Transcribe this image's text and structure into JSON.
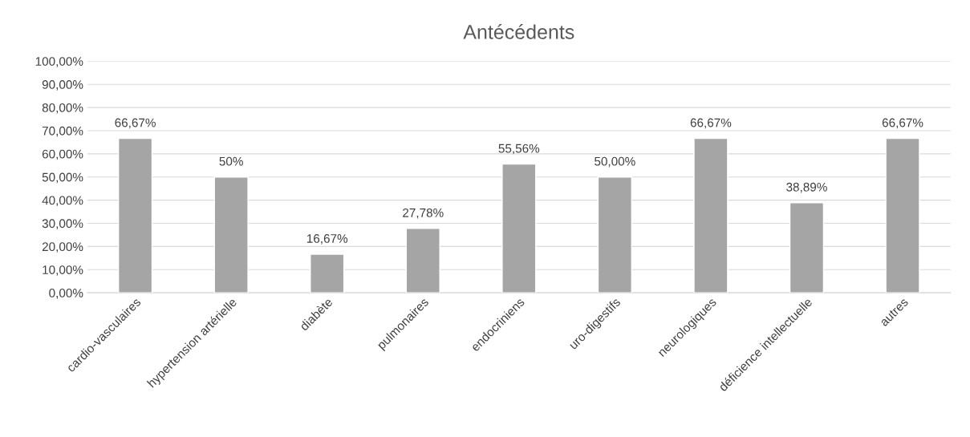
{
  "chart_data": {
    "type": "bar",
    "title": "Antécédents",
    "categories": [
      "cardio-vasculaires",
      "hypertension artérielle",
      "diabète",
      "pulmonaires",
      "endocriniens",
      "uro-digestifs",
      "neurologiques",
      "déficience intellectuelle",
      "autres"
    ],
    "values": [
      66.67,
      50,
      16.67,
      27.78,
      55.56,
      50.0,
      66.67,
      38.89,
      66.67
    ],
    "value_labels": [
      "66,67%",
      "50%",
      "16,67%",
      "27,78%",
      "55,56%",
      "50,00%",
      "66,67%",
      "38,89%",
      "66,67%"
    ],
    "color": "#a5a5a5",
    "ylim": [
      0,
      100
    ],
    "yticks": [
      {
        "value": 0,
        "label": "0,00%"
      },
      {
        "value": 10,
        "label": "10,00%"
      },
      {
        "value": 20,
        "label": "20,00%"
      },
      {
        "value": 30,
        "label": "30,00%"
      },
      {
        "value": 40,
        "label": "40,00%"
      },
      {
        "value": 50,
        "label": "50,00%"
      },
      {
        "value": 60,
        "label": "60,00%"
      },
      {
        "value": 70,
        "label": "70,00%"
      },
      {
        "value": 80,
        "label": "80,00%"
      },
      {
        "value": 90,
        "label": "90,00%"
      },
      {
        "value": 100,
        "label": "100,00%"
      }
    ],
    "grid": "y",
    "legend": false
  }
}
